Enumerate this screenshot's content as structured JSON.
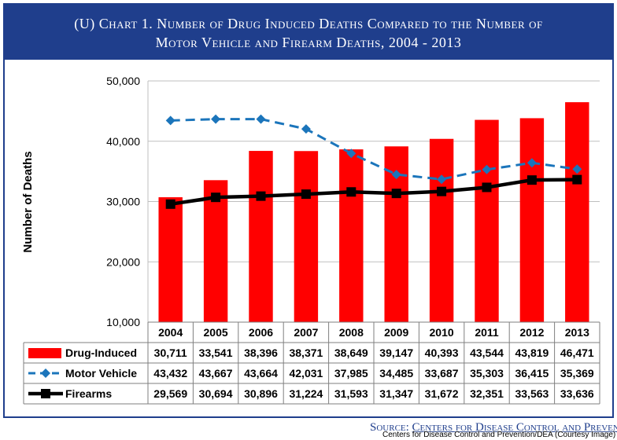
{
  "header": {
    "title_line1": "(U)  Chart 1.  Number of Drug Induced Deaths Compared to the Number of",
    "title_line2": "Motor Vehicle and Firearm Deaths, 2004 - 2013"
  },
  "source": {
    "prefix": "Source: ",
    "name": "Centers for Disease Control and Prevention"
  },
  "credit": "Centers for Disease Control and Prevention/DEA (Courtesy Image)",
  "colors": {
    "header_bg": "#1f3e8c",
    "bars": "#ff0000",
    "motor_vehicle": "#1b75bb",
    "firearms": "#000000"
  },
  "chart_data": {
    "type": "bar",
    "categories": [
      "2004",
      "2005",
      "2006",
      "2007",
      "2008",
      "2009",
      "2010",
      "2011",
      "2012",
      "2013"
    ],
    "ylabel": "Number of Deaths",
    "ylim": [
      10000,
      50000
    ],
    "yticks": [
      "10,000",
      "20,000",
      "30,000",
      "40,000",
      "50,000"
    ],
    "grid": true,
    "legend": "data table below x-axis",
    "series": [
      {
        "name": "Drug-Induced",
        "type": "bar",
        "values": [
          30711,
          33541,
          38396,
          38371,
          38649,
          39147,
          40393,
          43544,
          43819,
          46471
        ],
        "labels": [
          "30,711",
          "33,541",
          "38,396",
          "38,371",
          "38,649",
          "39,147",
          "40,393",
          "43,544",
          "43,819",
          "46,471"
        ]
      },
      {
        "name": "Motor Vehicle",
        "type": "line",
        "style": "dashed-diamond",
        "values": [
          43432,
          43667,
          43664,
          42031,
          37985,
          34485,
          33687,
          35303,
          36415,
          35369
        ],
        "labels": [
          "43,432",
          "43,667",
          "43,664",
          "42,031",
          "37,985",
          "34,485",
          "33,687",
          "35,303",
          "36,415",
          "35,369"
        ]
      },
      {
        "name": "Firearms",
        "type": "line",
        "style": "solid-square",
        "values": [
          29569,
          30694,
          30896,
          31224,
          31593,
          31347,
          31672,
          32351,
          33563,
          33636
        ],
        "labels": [
          "29,569",
          "30,694",
          "30,896",
          "31,224",
          "31,593",
          "31,347",
          "31,672",
          "32,351",
          "33,563",
          "33,636"
        ]
      }
    ]
  }
}
